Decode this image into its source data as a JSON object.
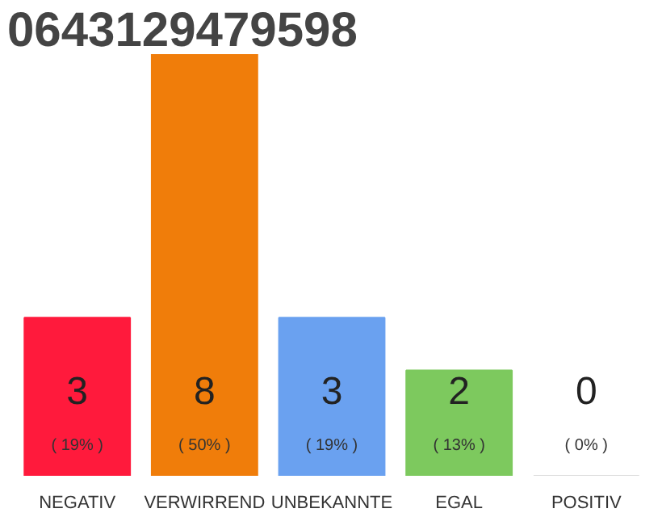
{
  "chart_data": {
    "type": "bar",
    "title": "0643129479598",
    "categories": [
      "NEGATIV",
      "VERWIRREND",
      "UNBEKANNTE",
      "EGAL",
      "POSITIV"
    ],
    "values": [
      3,
      8,
      3,
      2,
      0
    ],
    "colors": [
      "#ff1a3c",
      "#f07d0a",
      "#6aa1f0",
      "#7dc95e",
      "#dddddd"
    ],
    "value_labels": [
      "3",
      "8",
      "3",
      "2",
      "0"
    ],
    "annotations": [
      "( 19% )",
      "( 50% )",
      "( 19% )",
      "( 13% )",
      "( 0% )"
    ],
    "tick_labels": "x"
  }
}
